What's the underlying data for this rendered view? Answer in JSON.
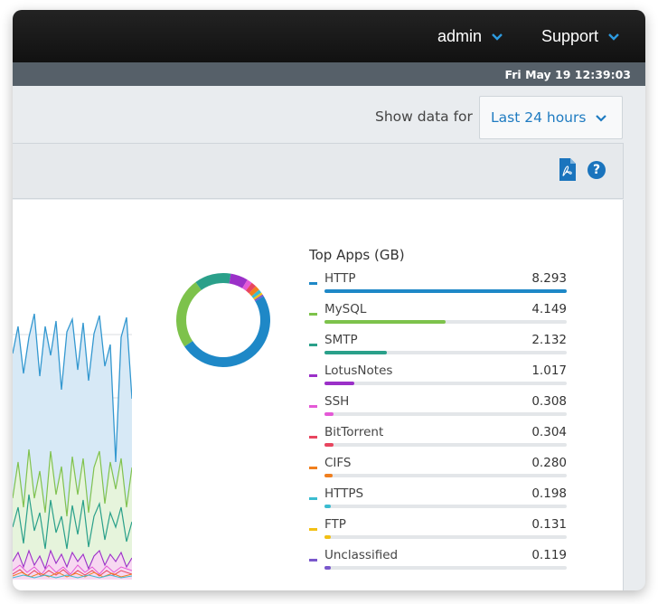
{
  "header": {
    "user_menu": "admin",
    "support_menu": "Support",
    "datetime": "Fri May 19 12:39:03"
  },
  "toolbar": {
    "show_data_label": "Show data for",
    "range_value": "Last 24 hours"
  },
  "panel": {
    "pdf_icon": "pdf-export-icon",
    "help_icon": "help-icon",
    "help_glyph": "?"
  },
  "top_apps": {
    "title": "Top Apps (GB)",
    "items": [
      {
        "name": "HTTP",
        "value": "8.293",
        "color": "#1e88c7"
      },
      {
        "name": "MySQL",
        "value": "4.149",
        "color": "#7dc24b"
      },
      {
        "name": "SMTP",
        "value": "2.132",
        "color": "#2aa08a"
      },
      {
        "name": "LotusNotes",
        "value": "1.017",
        "color": "#9b30c8"
      },
      {
        "name": "SSH",
        "value": "0.308",
        "color": "#e459d6"
      },
      {
        "name": "BitTorrent",
        "value": "0.304",
        "color": "#e8455f"
      },
      {
        "name": "CIFS",
        "value": "0.280",
        "color": "#f07f1e"
      },
      {
        "name": "HTTPS",
        "value": "0.198",
        "color": "#3bbcd0"
      },
      {
        "name": "FTP",
        "value": "0.131",
        "color": "#f2c014"
      },
      {
        "name": "Unclassified",
        "value": "0.119",
        "color": "#7a58cc"
      }
    ]
  }
}
